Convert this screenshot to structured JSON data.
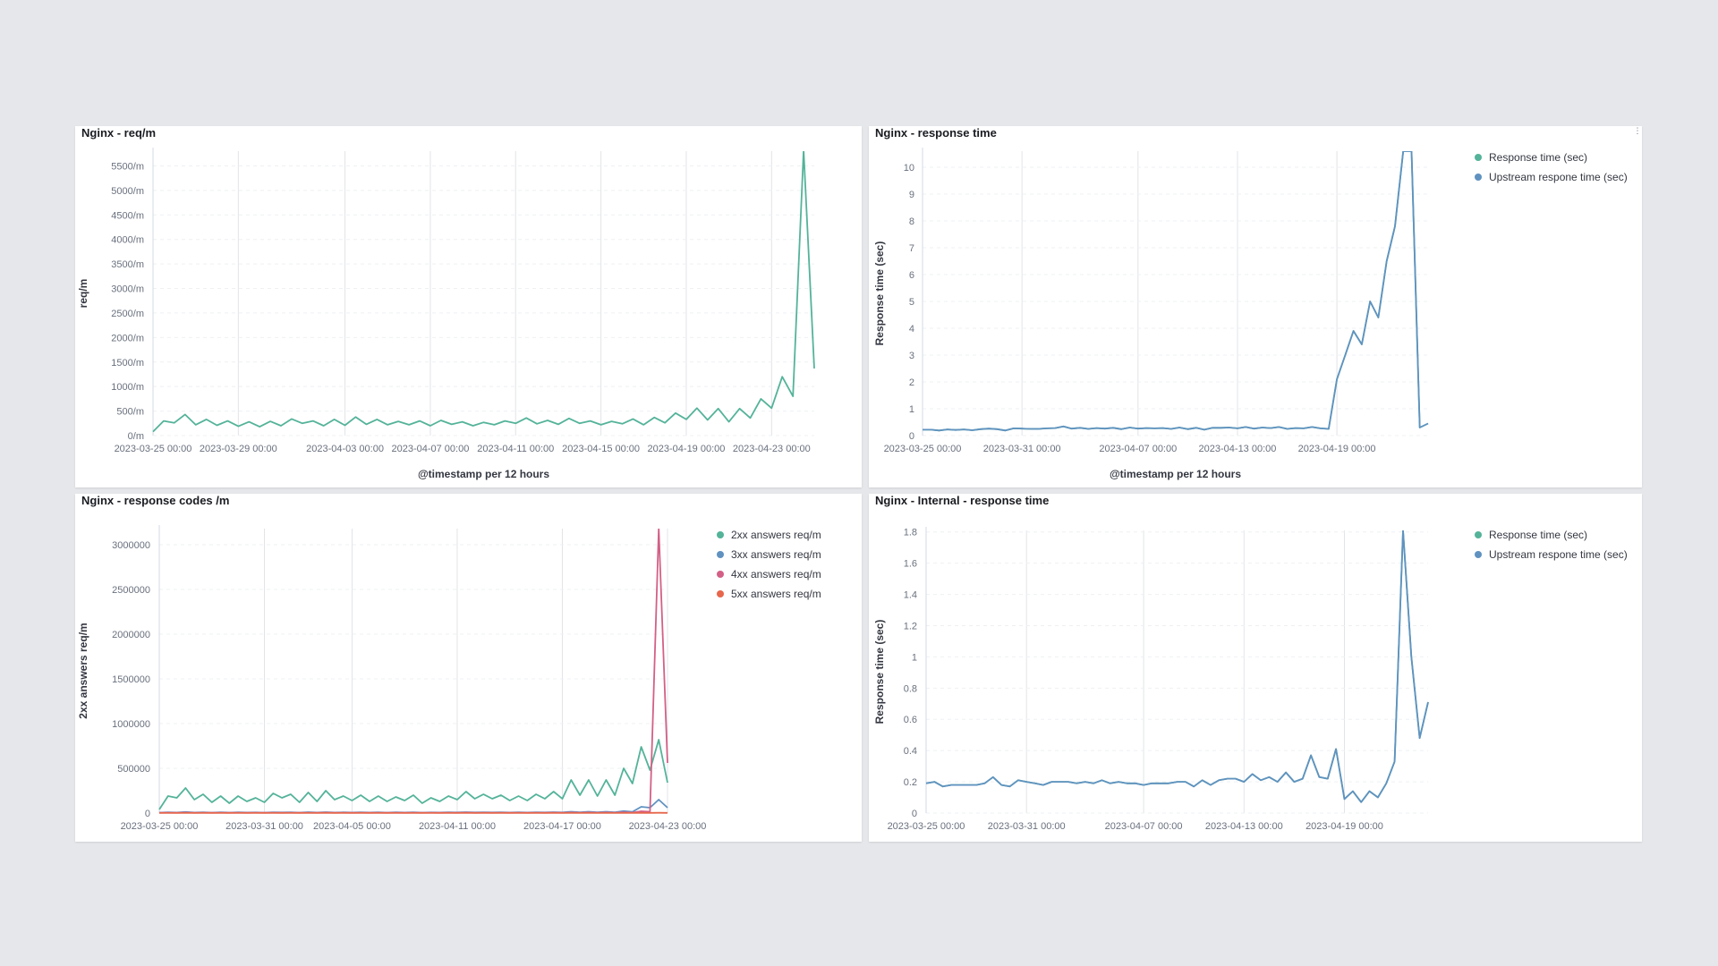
{
  "panels": [
    {
      "title": "Nginx - req/m",
      "chart_data": {
        "type": "line",
        "title": "Nginx - req/m",
        "xlabel": "@timestamp per 12 hours",
        "ylabel": "req/m",
        "x_start": "2023-03-25 00:00",
        "x_interval": "12 hours",
        "x_ticks": [
          "2023-03-25 00:00",
          "2023-03-29 00:00",
          "2023-04-03 00:00",
          "2023-04-07 00:00",
          "2023-04-11 00:00",
          "2023-04-15 00:00",
          "2023-04-19 00:00",
          "2023-04-23 00:00"
        ],
        "y_ticks": [
          "0/m",
          "500/m",
          "1000/m",
          "1500/m",
          "2000/m",
          "2500/m",
          "3000/m",
          "3500/m",
          "4000/m",
          "4500/m",
          "5000/m",
          "5500/m"
        ],
        "ylim": [
          0,
          5800
        ],
        "grid": "vertical",
        "legend": "none",
        "series": [
          {
            "color": "#54b399",
            "values": [
              80,
              300,
              260,
              430,
              220,
              330,
              210,
              300,
              190,
              280,
              180,
              290,
              200,
              340,
              250,
              300,
              200,
              330,
              210,
              380,
              230,
              330,
              220,
              290,
              220,
              300,
              200,
              310,
              230,
              280,
              200,
              270,
              220,
              300,
              250,
              360,
              240,
              310,
              230,
              350,
              250,
              300,
              220,
              290,
              240,
              340,
              220,
              370,
              260,
              460,
              330,
              560,
              320,
              550,
              280,
              550,
              360,
              750,
              560,
              1200,
              800,
              5820,
              1370
            ]
          }
        ]
      }
    },
    {
      "title": "Nginx - response time",
      "corner_icon": "⋮",
      "chart_data": {
        "type": "line",
        "title": "Nginx - response time",
        "xlabel": "@timestamp per 12 hours",
        "ylabel": "Response time (sec)",
        "x_start": "2023-03-25 00:00",
        "x_interval": "12 hours",
        "x_ticks": [
          "2023-03-25 00:00",
          "2023-03-31 00:00",
          "2023-04-07 00:00",
          "2023-04-13 00:00",
          "2023-04-19 00:00"
        ],
        "y_ticks": [
          "0",
          "1",
          "2",
          "3",
          "4",
          "5",
          "6",
          "7",
          "8",
          "9",
          "10"
        ],
        "ylim": [
          0,
          10.6
        ],
        "grid": "vertical",
        "legend": "top-right",
        "series": [
          {
            "name": "Response time (sec)",
            "color": "#54b399",
            "values": [
              0.22,
              0.22,
              0.19,
              0.23,
              0.21,
              0.23,
              0.2,
              0.24,
              0.26,
              0.24,
              0.19,
              0.27,
              0.26,
              0.25,
              0.25,
              0.27,
              0.28,
              0.34,
              0.26,
              0.29,
              0.25,
              0.28,
              0.26,
              0.29,
              0.24,
              0.3,
              0.26,
              0.28,
              0.27,
              0.28,
              0.25,
              0.3,
              0.24,
              0.29,
              0.22,
              0.29,
              0.29,
              0.3,
              0.27,
              0.32,
              0.26,
              0.3,
              0.28,
              0.32,
              0.25,
              0.28,
              0.27,
              0.32,
              0.27,
              0.25,
              2.1,
              3.0,
              3.9,
              3.4,
              5.0,
              4.4,
              6.5,
              7.8,
              10.6,
              10.6,
              0.3,
              0.45
            ]
          },
          {
            "name": "Upstream respone time (sec)",
            "color": "#6092c0",
            "values": [
              0.22,
              0.22,
              0.19,
              0.23,
              0.21,
              0.23,
              0.2,
              0.24,
              0.26,
              0.24,
              0.19,
              0.27,
              0.26,
              0.25,
              0.25,
              0.27,
              0.28,
              0.34,
              0.26,
              0.29,
              0.25,
              0.28,
              0.26,
              0.29,
              0.24,
              0.3,
              0.26,
              0.28,
              0.27,
              0.28,
              0.25,
              0.3,
              0.24,
              0.29,
              0.22,
              0.29,
              0.29,
              0.3,
              0.27,
              0.32,
              0.26,
              0.3,
              0.28,
              0.32,
              0.25,
              0.28,
              0.27,
              0.32,
              0.27,
              0.25,
              2.1,
              3.0,
              3.9,
              3.4,
              5.0,
              4.4,
              6.5,
              7.8,
              10.6,
              10.6,
              0.3,
              0.45
            ]
          }
        ]
      }
    },
    {
      "title": "Nginx - response codes /m",
      "chart_data": {
        "type": "line",
        "title": "Nginx - response codes /m",
        "xlabel": "",
        "ylabel": "2xx answers req/m",
        "x_start": "2023-03-25 00:00",
        "x_interval": "12 hours",
        "x_ticks": [
          "2023-03-25 00:00",
          "2023-03-31 00:00",
          "2023-04-05 00:00",
          "2023-04-11 00:00",
          "2023-04-17 00:00",
          "2023-04-23 00:00"
        ],
        "y_ticks": [
          "0",
          "500000",
          "1000000",
          "1500000",
          "2000000",
          "2500000",
          "3000000"
        ],
        "ylim": [
          0,
          3180000
        ],
        "grid": "vertical",
        "legend": "top-right",
        "series": [
          {
            "name": "2xx answers req/m",
            "color": "#54b399",
            "values": [
              40000,
              190000,
              170000,
              280000,
              150000,
              210000,
              120000,
              190000,
              110000,
              190000,
              130000,
              170000,
              120000,
              220000,
              170000,
              210000,
              120000,
              230000,
              130000,
              250000,
              150000,
              190000,
              140000,
              200000,
              130000,
              190000,
              130000,
              180000,
              140000,
              200000,
              110000,
              170000,
              130000,
              190000,
              150000,
              240000,
              160000,
              210000,
              160000,
              200000,
              140000,
              190000,
              140000,
              210000,
              160000,
              240000,
              160000,
              370000,
              200000,
              370000,
              190000,
              370000,
              200000,
              500000,
              330000,
              740000,
              480000,
              820000,
              340000
            ]
          },
          {
            "name": "3xx answers req/m",
            "color": "#6092c0",
            "values": [
              5000,
              8000,
              6000,
              12000,
              6000,
              9000,
              5000,
              8000,
              5000,
              8000,
              6000,
              7000,
              5000,
              9000,
              7000,
              9000,
              5000,
              10000,
              6000,
              10000,
              6000,
              8000,
              6000,
              8000,
              6000,
              8000,
              5000,
              8000,
              6000,
              9000,
              5000,
              7000,
              6000,
              8000,
              7000,
              10000,
              7000,
              9000,
              7000,
              9000,
              6000,
              8000,
              6000,
              9000,
              7000,
              10000,
              7000,
              15000,
              9000,
              15000,
              8000,
              15000,
              9000,
              22000,
              14000,
              70000,
              60000,
              150000,
              60000
            ]
          },
          {
            "name": "4xx answers req/m",
            "color": "#d36086",
            "values": [
              3000,
              4000,
              3000,
              5000,
              3000,
              4000,
              3000,
              4000,
              3000,
              4000,
              3000,
              4000,
              3000,
              4000,
              3000,
              4000,
              3000,
              4000,
              3000,
              5000,
              3000,
              4000,
              3000,
              4000,
              3000,
              4000,
              3000,
              4000,
              3000,
              4000,
              3000,
              4000,
              3000,
              4000,
              3000,
              5000,
              3000,
              4000,
              3000,
              4000,
              3000,
              4000,
              3000,
              4000,
              3000,
              5000,
              3000,
              6000,
              4000,
              6000,
              4000,
              6000,
              4000,
              8000,
              5000,
              20000,
              15000,
              3180000,
              560000
            ]
          },
          {
            "name": "5xx answers req/m",
            "color": "#e7664c",
            "values": [
              1000,
              1000,
              1000,
              1000,
              1000,
              1000,
              1000,
              1000,
              1000,
              1000,
              1000,
              1000,
              1000,
              1000,
              1000,
              1000,
              1000,
              1000,
              1000,
              1000,
              1000,
              1000,
              1000,
              1000,
              1000,
              1000,
              1000,
              1000,
              1000,
              1000,
              1000,
              1000,
              1000,
              1000,
              1000,
              1000,
              1000,
              1000,
              1000,
              1000,
              1000,
              1000,
              1000,
              1000,
              1000,
              1000,
              1000,
              1000,
              1000,
              1000,
              1000,
              1000,
              1000,
              1000,
              1000,
              2000,
              2000,
              3000,
              2000
            ]
          }
        ]
      }
    },
    {
      "title": "Nginx - Internal - response time",
      "chart_data": {
        "type": "line",
        "title": "Nginx - Internal - response time",
        "xlabel": "",
        "ylabel": "Response time (sec)",
        "x_start": "2023-03-25 00:00",
        "x_interval": "12 hours",
        "x_ticks": [
          "2023-03-25 00:00",
          "2023-03-31 00:00",
          "2023-04-07 00:00",
          "2023-04-13 00:00",
          "2023-04-19 00:00"
        ],
        "y_ticks": [
          "0",
          "0.2",
          "0.4",
          "0.6",
          "0.8",
          "1",
          "1.2",
          "1.4",
          "1.6",
          "1.8"
        ],
        "ylim": [
          0,
          1.81
        ],
        "grid": "vertical",
        "legend": "top-right",
        "series": [
          {
            "name": "Response time (sec)",
            "color": "#54b399",
            "values": [
              0.19,
              0.2,
              0.17,
              0.18,
              0.18,
              0.18,
              0.18,
              0.19,
              0.23,
              0.18,
              0.17,
              0.21,
              0.2,
              0.19,
              0.18,
              0.2,
              0.2,
              0.2,
              0.19,
              0.2,
              0.19,
              0.21,
              0.19,
              0.2,
              0.19,
              0.19,
              0.18,
              0.19,
              0.19,
              0.19,
              0.2,
              0.2,
              0.17,
              0.21,
              0.18,
              0.21,
              0.22,
              0.22,
              0.2,
              0.25,
              0.21,
              0.23,
              0.2,
              0.26,
              0.2,
              0.22,
              0.37,
              0.23,
              0.22,
              0.41,
              0.09,
              0.14,
              0.07,
              0.14,
              0.1,
              0.19,
              0.33,
              1.81,
              1.0,
              0.48,
              0.71
            ]
          },
          {
            "name": "Upstream respone time (sec)",
            "color": "#6092c0",
            "values": [
              0.19,
              0.2,
              0.17,
              0.18,
              0.18,
              0.18,
              0.18,
              0.19,
              0.23,
              0.18,
              0.17,
              0.21,
              0.2,
              0.19,
              0.18,
              0.2,
              0.2,
              0.2,
              0.19,
              0.2,
              0.19,
              0.21,
              0.19,
              0.2,
              0.19,
              0.19,
              0.18,
              0.19,
              0.19,
              0.19,
              0.2,
              0.2,
              0.17,
              0.21,
              0.18,
              0.21,
              0.22,
              0.22,
              0.2,
              0.25,
              0.21,
              0.23,
              0.2,
              0.26,
              0.2,
              0.22,
              0.37,
              0.23,
              0.22,
              0.41,
              0.09,
              0.14,
              0.07,
              0.14,
              0.1,
              0.19,
              0.33,
              1.81,
              1.0,
              0.48,
              0.71
            ]
          }
        ]
      }
    }
  ]
}
